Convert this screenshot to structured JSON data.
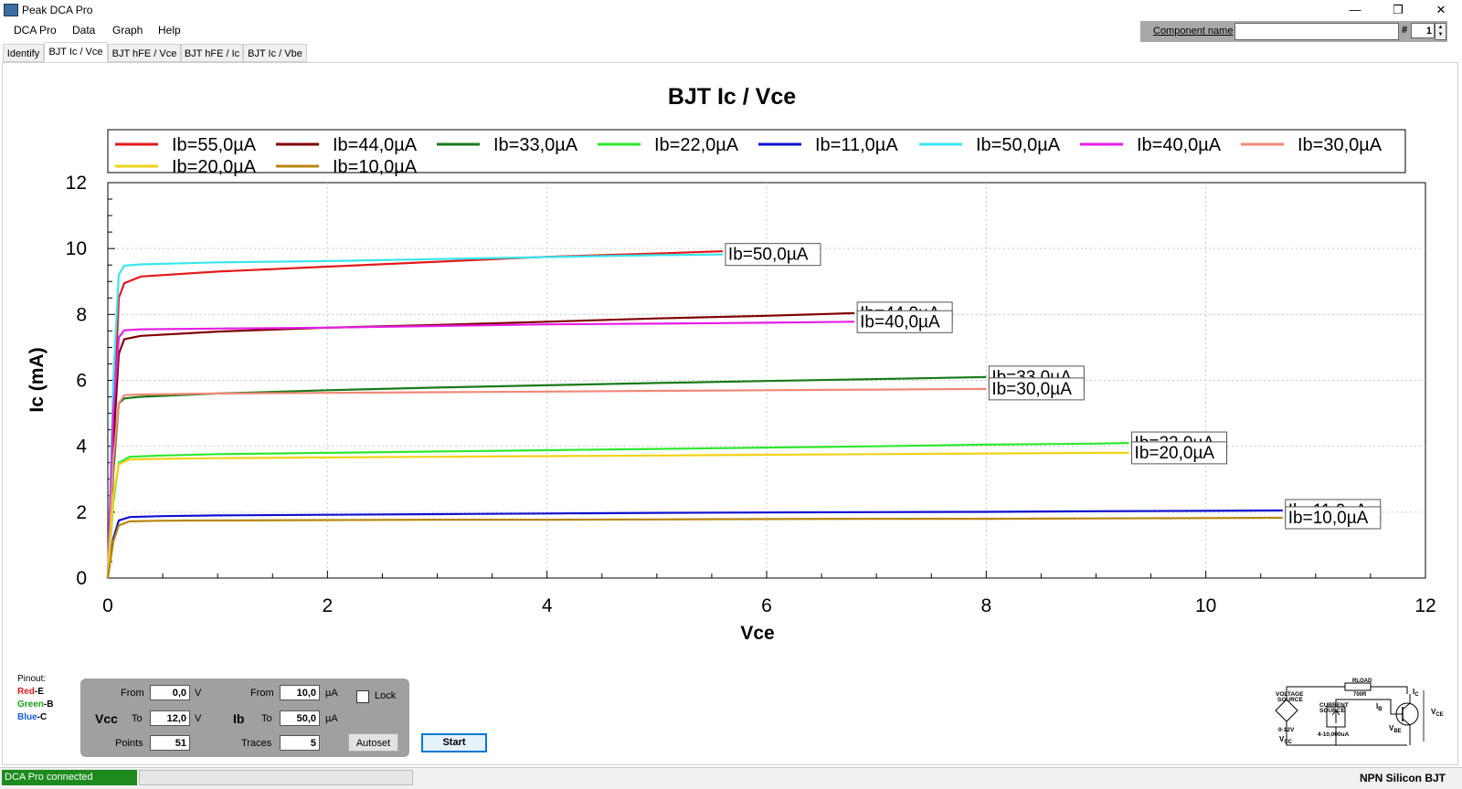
{
  "window": {
    "title": "Peak DCA Pro",
    "min_glyph": "—",
    "max_glyph": "❐",
    "close_glyph": "✕",
    "icon": "app-icon"
  },
  "menu": [
    "DCA Pro",
    "Data",
    "Graph",
    "Help"
  ],
  "component": {
    "label": "Component name",
    "value": "",
    "hash_label": "#",
    "number": "1",
    "spin_up": "▲",
    "spin_down": "▼"
  },
  "tabs": [
    {
      "label": "Identify",
      "active": false
    },
    {
      "label": "BJT Ic / Vce",
      "active": true
    },
    {
      "label": "BJT hFE / Vce",
      "active": false
    },
    {
      "label": "BJT hFE / Ic",
      "active": false
    },
    {
      "label": "BJT Ic / Vbe",
      "active": false
    }
  ],
  "chart_data": {
    "type": "line",
    "title": "BJT Ic / Vce",
    "xlabel": "Vce",
    "ylabel": "Ic (mA)",
    "xlim": [
      0,
      12
    ],
    "ylim": [
      0,
      12
    ],
    "xticks": [
      0,
      2,
      4,
      6,
      8,
      10,
      12
    ],
    "yticks": [
      0,
      2,
      4,
      6,
      8,
      10,
      12
    ],
    "grid": true,
    "legend_position": "top",
    "series": [
      {
        "name": "Ib=55,0µA",
        "color": "#e31a1c",
        "endlabel": "",
        "points": [
          [
            0,
            0
          ],
          [
            0.05,
            4.5
          ],
          [
            0.1,
            8.5
          ],
          [
            0.15,
            8.95
          ],
          [
            0.3,
            9.15
          ],
          [
            1,
            9.3
          ],
          [
            2,
            9.45
          ],
          [
            3,
            9.6
          ],
          [
            4,
            9.75
          ],
          [
            5,
            9.85
          ],
          [
            5.6,
            9.92
          ]
        ]
      },
      {
        "name": "Ib=44,0µA",
        "color": "#800000",
        "endlabel": "Ib=44,0µA",
        "points": [
          [
            0,
            0
          ],
          [
            0.05,
            4
          ],
          [
            0.1,
            6.8
          ],
          [
            0.15,
            7.25
          ],
          [
            0.3,
            7.35
          ],
          [
            1,
            7.48
          ],
          [
            2,
            7.6
          ],
          [
            3,
            7.68
          ],
          [
            4,
            7.78
          ],
          [
            5,
            7.88
          ],
          [
            6,
            7.96
          ],
          [
            6.8,
            8.04
          ]
        ]
      },
      {
        "name": "Ib=33,0µA",
        "color": "#1a7a1a",
        "endlabel": "Ib=33,0µA",
        "points": [
          [
            0,
            0
          ],
          [
            0.05,
            3.2
          ],
          [
            0.1,
            5.3
          ],
          [
            0.15,
            5.45
          ],
          [
            0.3,
            5.5
          ],
          [
            1,
            5.6
          ],
          [
            2,
            5.7
          ],
          [
            3,
            5.78
          ],
          [
            4,
            5.85
          ],
          [
            5,
            5.92
          ],
          [
            6,
            5.98
          ],
          [
            7,
            6.04
          ],
          [
            8,
            6.1
          ]
        ]
      },
      {
        "name": "Ib=22,0µA",
        "color": "#2ee82e",
        "endlabel": "Ib=22,0µA",
        "points": [
          [
            0,
            0
          ],
          [
            0.05,
            2.3
          ],
          [
            0.1,
            3.5
          ],
          [
            0.2,
            3.68
          ],
          [
            0.5,
            3.72
          ],
          [
            1,
            3.76
          ],
          [
            2,
            3.8
          ],
          [
            3,
            3.84
          ],
          [
            4,
            3.88
          ],
          [
            5,
            3.92
          ],
          [
            6,
            3.96
          ],
          [
            7,
            4
          ],
          [
            8,
            4.05
          ],
          [
            9,
            4.08
          ],
          [
            9.3,
            4.1
          ]
        ]
      },
      {
        "name": "Ib=11,0µA",
        "color": "#1010d0",
        "endlabel": "Ib=11,0µA",
        "points": [
          [
            0,
            0
          ],
          [
            0.05,
            1.2
          ],
          [
            0.1,
            1.75
          ],
          [
            0.2,
            1.85
          ],
          [
            0.5,
            1.88
          ],
          [
            1,
            1.9
          ],
          [
            2,
            1.92
          ],
          [
            3,
            1.94
          ],
          [
            4,
            1.96
          ],
          [
            5,
            1.98
          ],
          [
            6,
            1.99
          ],
          [
            7,
            2
          ],
          [
            8,
            2.01
          ],
          [
            9,
            2.03
          ],
          [
            10,
            2.04
          ],
          [
            10.7,
            2.05
          ]
        ]
      },
      {
        "name": "Ib=50,0µA",
        "color": "#3ae5ee",
        "endlabel": "Ib=50,0µA",
        "points": [
          [
            0,
            0
          ],
          [
            0.05,
            6
          ],
          [
            0.1,
            9.2
          ],
          [
            0.15,
            9.48
          ],
          [
            0.3,
            9.52
          ],
          [
            1,
            9.58
          ],
          [
            2,
            9.62
          ],
          [
            3,
            9.68
          ],
          [
            4,
            9.74
          ],
          [
            5,
            9.8
          ],
          [
            5.6,
            9.82
          ]
        ]
      },
      {
        "name": "Ib=40,0µA",
        "color": "#e61ee6",
        "endlabel": "Ib=40,0µA",
        "points": [
          [
            0,
            0
          ],
          [
            0.05,
            5
          ],
          [
            0.1,
            7.3
          ],
          [
            0.15,
            7.52
          ],
          [
            0.3,
            7.55
          ],
          [
            1,
            7.57
          ],
          [
            2,
            7.6
          ],
          [
            3,
            7.65
          ],
          [
            4,
            7.7
          ],
          [
            5,
            7.72
          ],
          [
            6,
            7.75
          ],
          [
            6.8,
            7.78
          ]
        ]
      },
      {
        "name": "Ib=30,0µA",
        "color": "#f08878",
        "endlabel": "Ib=30,0µA",
        "points": [
          [
            0,
            0
          ],
          [
            0.05,
            3.6
          ],
          [
            0.1,
            5.3
          ],
          [
            0.15,
            5.55
          ],
          [
            0.3,
            5.57
          ],
          [
            1,
            5.6
          ],
          [
            2,
            5.62
          ],
          [
            3,
            5.64
          ],
          [
            4,
            5.66
          ],
          [
            5,
            5.68
          ],
          [
            6,
            5.7
          ],
          [
            7,
            5.72
          ],
          [
            8,
            5.74
          ]
        ]
      },
      {
        "name": "Ib=20,0µA",
        "color": "#f2d21a",
        "endlabel": "Ib=20,0µA",
        "points": [
          [
            0,
            0
          ],
          [
            0.05,
            2.5
          ],
          [
            0.1,
            3.45
          ],
          [
            0.2,
            3.6
          ],
          [
            0.5,
            3.62
          ],
          [
            1,
            3.64
          ],
          [
            2,
            3.66
          ],
          [
            3,
            3.68
          ],
          [
            4,
            3.7
          ],
          [
            5,
            3.72
          ],
          [
            6,
            3.74
          ],
          [
            7,
            3.76
          ],
          [
            8,
            3.78
          ],
          [
            9,
            3.8
          ],
          [
            9.3,
            3.8
          ]
        ]
      },
      {
        "name": "Ib=10,0µA",
        "color": "#b8860b",
        "endlabel": "Ib=10,0µA",
        "points": [
          [
            0,
            0
          ],
          [
            0.05,
            1.1
          ],
          [
            0.1,
            1.6
          ],
          [
            0.2,
            1.72
          ],
          [
            0.5,
            1.74
          ],
          [
            1,
            1.75
          ],
          [
            2,
            1.76
          ],
          [
            3,
            1.77
          ],
          [
            4,
            1.77
          ],
          [
            5,
            1.78
          ],
          [
            6,
            1.79
          ],
          [
            7,
            1.8
          ],
          [
            8,
            1.8
          ],
          [
            9,
            1.81
          ],
          [
            10,
            1.82
          ],
          [
            10.7,
            1.83
          ]
        ]
      }
    ]
  },
  "pinout": {
    "title": "Pinout:",
    "pins": [
      {
        "color_name": "Red",
        "pin": "-E",
        "color": "#e31a1c"
      },
      {
        "color_name": "Green",
        "pin": "-B",
        "color": "#1aa01a"
      },
      {
        "color_name": "Blue",
        "pin": "-C",
        "color": "#1a5ae0"
      }
    ]
  },
  "controls": {
    "vcc": {
      "label": "Vcc",
      "from_label": "From",
      "from": "0,0",
      "from_unit": "V",
      "to_label": "To",
      "to": "12,0",
      "to_unit": "V",
      "points_label": "Points",
      "points": "51"
    },
    "ib": {
      "label": "Ib",
      "from_label": "From",
      "from": "10,0",
      "from_unit": "µA",
      "to_label": "To",
      "to": "50,0",
      "to_unit": "µA",
      "traces_label": "Traces",
      "traces": "5"
    },
    "lock_label": "Lock",
    "autoset_label": "Autoset",
    "start_label": "Start"
  },
  "circuit": {
    "voltage_source_1": "VOLTAGE",
    "voltage_source_2": "SOURCE",
    "voltage_range": "0-12V",
    "vcc": "V",
    "vcc_sub": "CC",
    "current_source_1": "CURRENT",
    "current_source_2": "SOURCE",
    "current_range": "4-10,000uA",
    "rload": "RLOAD",
    "rload_val": "700R",
    "ib": "I",
    "ib_sub": "B",
    "ic": "I",
    "ic_sub": "C",
    "vbe": "V",
    "vbe_sub": "BE",
    "vce": "V",
    "vce_sub": "CE"
  },
  "status": {
    "connection": "DCA Pro connected",
    "device": "NPN Silicon BJT"
  }
}
